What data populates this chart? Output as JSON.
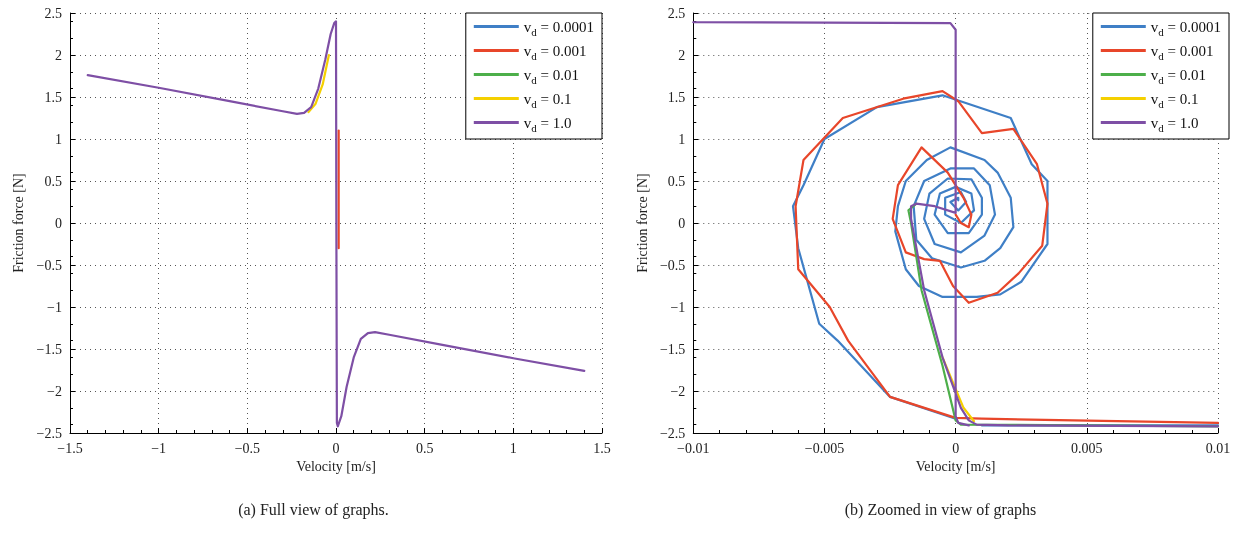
{
  "chart_data": [
    {
      "type": "line",
      "title": "(a) Full view of graphs.",
      "xlabel": "Velocity [m/s]",
      "ylabel": "Friction force [N]",
      "xlim": [
        -1.5,
        1.5
      ],
      "ylim": [
        -2.5,
        2.5
      ],
      "xticks": [
        -1.5,
        -1,
        -0.5,
        0,
        0.5,
        1,
        1.5
      ],
      "yticks": [
        -2.5,
        -2,
        -1.5,
        -1,
        -0.5,
        0,
        0.5,
        1,
        1.5,
        2,
        2.5
      ],
      "grid": true,
      "legend": "top right",
      "marker": "none",
      "series": [
        {
          "name": "v$_{d}$ = 0.0001",
          "color": "#3f7fc6"
        },
        {
          "name": "v$_{d}$ = 0.001",
          "color": "#e8462a",
          "x": [
            0.015,
            0.015
          ],
          "values": [
            1.1,
            -0.3
          ]
        },
        {
          "name": "v$_{d}$ = 0.01",
          "color": "#4daf4a"
        },
        {
          "name": "v$_{d}$ = 0.1",
          "color": "#f5d000",
          "x": [
            -0.155,
            -0.115,
            -0.075,
            -0.04
          ],
          "values": [
            1.32,
            1.42,
            1.65,
            2.0
          ]
        },
        {
          "name": "v$_{d}$ = 1.0",
          "color": "#7e4fa5",
          "x": [
            -1.4,
            -1.0,
            -0.6,
            -0.3,
            -0.22,
            -0.18,
            -0.14,
            -0.1,
            -0.06,
            -0.03,
            -0.01,
            0,
            0.002,
            0.005,
            0.01,
            0.03,
            0.06,
            0.1,
            0.14,
            0.18,
            0.22,
            0.3,
            0.6,
            1.0,
            1.4
          ],
          "values": [
            1.76,
            1.61,
            1.45,
            1.33,
            1.3,
            1.31,
            1.38,
            1.6,
            1.95,
            2.25,
            2.38,
            2.4,
            0,
            -2.38,
            -2.42,
            -2.3,
            -1.95,
            -1.6,
            -1.38,
            -1.31,
            -1.3,
            -1.33,
            -1.45,
            -1.61,
            -1.76
          ]
        }
      ]
    },
    {
      "type": "line",
      "title": "(b) Zoomed in view of graphs",
      "xlabel": "Velocity [m/s]",
      "ylabel": "Friction force [N]",
      "xlim": [
        -0.01,
        0.01
      ],
      "ylim": [
        -2.5,
        2.5
      ],
      "xticks": [
        -0.01,
        -0.005,
        0,
        0.005,
        0.01
      ],
      "yticks": [
        -2.5,
        -2,
        -1.5,
        -1,
        -0.5,
        0,
        0.5,
        1,
        1.5,
        2,
        2.5
      ],
      "grid": true,
      "legend": "top right",
      "marker": "none",
      "series": [
        {
          "name": "v$_{d}$ = 0.0001",
          "color": "#3f7fc6",
          "x": [
            0.001,
            0.01,
            null,
            0,
            -0.0025,
            -0.0045,
            -0.0052,
            -0.006,
            -0.0062,
            -0.0058,
            -0.005,
            -0.003,
            -0.0005,
            0.0021,
            0.0029,
            0.0035,
            0.0035,
            0.0025,
            0.0017,
            0.0008,
            -0.0005,
            -0.0014,
            -0.0019,
            -0.0023,
            -0.0022,
            -0.0019,
            -0.0011,
            -0.0002,
            0.0011,
            0.0016,
            0.0021,
            0.0022,
            0.0017,
            0.0011,
            0.0002,
            -0.0009,
            -0.0015,
            -0.0016,
            -0.0012,
            -0.0002,
            0.0007,
            0.0013,
            0.0015,
            0.0011,
            0.0002,
            -0.0008,
            -0.0012,
            -0.001,
            -0.0003,
            0.0006,
            0.001,
            0.001,
            0.0005,
            -0.0003,
            -0.0008,
            -0.0006,
            0,
            0.0006,
            0.0007,
            0.0002,
            -0.0004,
            -0.0004,
            0.0002,
            0.0004,
            0.0001,
            -0.0002,
            0.0001,
            0.0001
          ],
          "values": [
            -2.41,
            -2.41,
            null,
            -2.33,
            -2.07,
            -1.4,
            -1.2,
            -0.3,
            0.2,
            0.45,
            1.0,
            1.38,
            1.52,
            1.25,
            0.7,
            0.5,
            -0.25,
            -0.7,
            -0.85,
            -0.88,
            -0.88,
            -0.75,
            -0.55,
            -0.1,
            0.2,
            0.5,
            0.75,
            0.9,
            0.75,
            0.6,
            0.3,
            -0.05,
            -0.3,
            -0.45,
            -0.53,
            -0.42,
            -0.2,
            0.2,
            0.5,
            0.65,
            0.65,
            0.45,
            0.1,
            -0.15,
            -0.35,
            -0.25,
            0.05,
            0.35,
            0.53,
            0.52,
            0.3,
            0.1,
            -0.12,
            -0.12,
            0.1,
            0.35,
            0.43,
            0.35,
            0.15,
            0,
            0.1,
            0.3,
            0.37,
            0.25,
            0.15,
            0.25,
            0.3,
            0.27
          ]
        },
        {
          "name": "v$_{d}$ = 0.001",
          "color": "#e8462a",
          "x": [
            0.01,
            0.001,
            0,
            -0.0025,
            -0.0041,
            -0.0048,
            -0.006,
            -0.0061,
            -0.0058,
            -0.0043,
            -0.002,
            -0.0005,
            0.0001,
            0.001,
            0.0022,
            0.0031,
            0.0035,
            0.0033,
            0.0024,
            0.0016,
            0.0005,
            -0.0001,
            -0.0006,
            -0.0012,
            -0.0019,
            -0.0024,
            -0.0022,
            -0.0013,
            -0.0003,
            0.0003,
            0.0006,
            0.0005,
            0.0002,
            0
          ],
          "values": [
            -2.38,
            -2.33,
            -2.32,
            -2.07,
            -1.4,
            -1.0,
            -0.55,
            0.2,
            0.75,
            1.25,
            1.48,
            1.57,
            1.45,
            1.07,
            1.12,
            0.7,
            0.23,
            -0.27,
            -0.6,
            -0.83,
            -0.95,
            -0.75,
            -0.45,
            -0.43,
            -0.35,
            0.05,
            0.45,
            0.9,
            0.6,
            0.3,
            0.1,
            -0.05,
            0,
            0.1
          ]
        },
        {
          "name": "v$_{d}$ = 0.01",
          "color": "#4daf4a",
          "x": [
            -0.0015,
            -0.0018,
            -0.0017,
            -0.0013,
            -0.0005,
            0,
            0.0002,
            0.01
          ],
          "values": [
            0.23,
            0.15,
            0,
            -0.8,
            -1.7,
            -2.35,
            -2.4,
            -2.42
          ]
        },
        {
          "name": "v$_{d}$ = 0.1",
          "color": "#f5d000",
          "x": [
            -0.0005,
            0.0003,
            0.0007
          ],
          "values": [
            -1.6,
            -2.2,
            -2.36
          ]
        },
        {
          "name": "v$_{d}$ = 1.0",
          "color": "#7e4fa5",
          "x": [
            -0.01,
            -0.0002,
            0,
            0,
            -0.0008,
            -0.0015,
            -0.0017,
            -0.0017,
            -0.0012,
            -0.0005,
            0.0002,
            0.0005,
            0.0008,
            0.002,
            0.01,
            null,
            0,
            0,
            0.0001,
            0.0005
          ],
          "values": [
            2.39,
            2.38,
            2.3,
            0.12,
            0.2,
            0.23,
            0.2,
            0.05,
            -0.8,
            -1.6,
            -2.2,
            -2.35,
            -2.4,
            -2.41,
            -2.42,
            null,
            0,
            -2.3,
            -2.38,
            -2.41
          ]
        }
      ]
    }
  ]
}
